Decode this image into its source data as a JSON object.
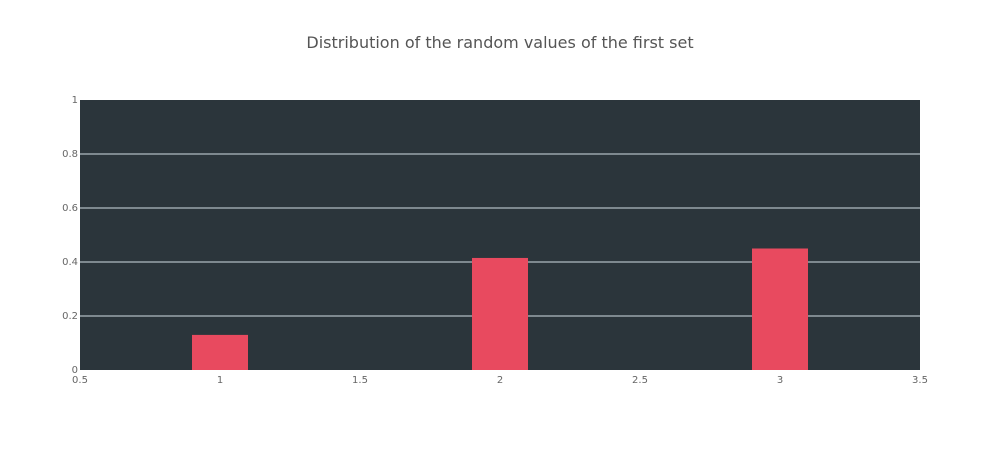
{
  "chart_data": {
    "type": "bar",
    "title": "Distribution of the random values of the first set",
    "xlabel": "",
    "ylabel": "",
    "x": [
      1,
      2,
      3
    ],
    "values": [
      0.13,
      0.415,
      0.45
    ],
    "xlim": [
      0.5,
      3.5
    ],
    "ylim": [
      0,
      1
    ],
    "x_ticks": [
      "0.5",
      "1",
      "1.5",
      "2",
      "2.5",
      "3",
      "3.5"
    ],
    "y_ticks": [
      "0",
      "0.2",
      "0.4",
      "0.6",
      "0.8",
      "1"
    ],
    "bar_width": 0.2,
    "grid": true,
    "colors": {
      "plot_background": "#2b353b",
      "bar": "#e84a5f",
      "grid": "#9aa5ab"
    }
  }
}
